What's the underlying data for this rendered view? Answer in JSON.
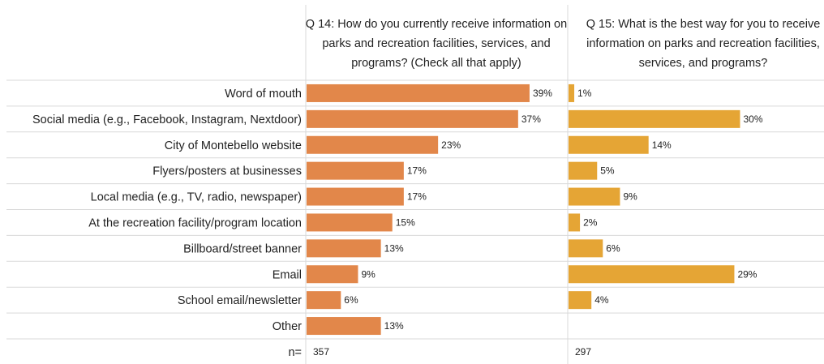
{
  "chart_data": {
    "type": "bar",
    "orientation": "horizontal",
    "categories": [
      "Word of mouth",
      "Social media (e.g., Facebook, Instagram, Nextdoor)",
      "City of Montebello website",
      "Flyers/posters at businesses",
      "Local media (e.g., TV, radio, newspaper)",
      "At the recreation facility/program location",
      "Billboard/street banner",
      "Email",
      "School email/newsletter",
      "Other"
    ],
    "series": [
      {
        "name": "Q 14: How do you currently receive information on parks and recreation facilities, services, and programs? (Check all that apply)",
        "values": [
          39,
          37,
          23,
          17,
          17,
          15,
          13,
          9,
          6,
          13
        ],
        "labels": [
          "39%",
          "37%",
          "23%",
          "17%",
          "17%",
          "15%",
          "13%",
          "9%",
          "6%",
          "13%"
        ],
        "n": "357",
        "color": "#E2874A"
      },
      {
        "name": "Q 15: What is the best way for you to receive information on parks and recreation facilities, services, and programs?",
        "values": [
          1,
          30,
          14,
          5,
          9,
          2,
          6,
          29,
          4,
          null
        ],
        "labels": [
          "1%",
          "30%",
          "14%",
          "5%",
          "9%",
          "2%",
          "6%",
          "29%",
          "4%",
          ""
        ],
        "n": "297",
        "color": "#E5A535"
      }
    ],
    "n_label": "n=",
    "unit": "%",
    "xlim": [
      0,
      45
    ],
    "grid": false,
    "legend": "none",
    "row_separator_color": "#D9D9D9"
  }
}
